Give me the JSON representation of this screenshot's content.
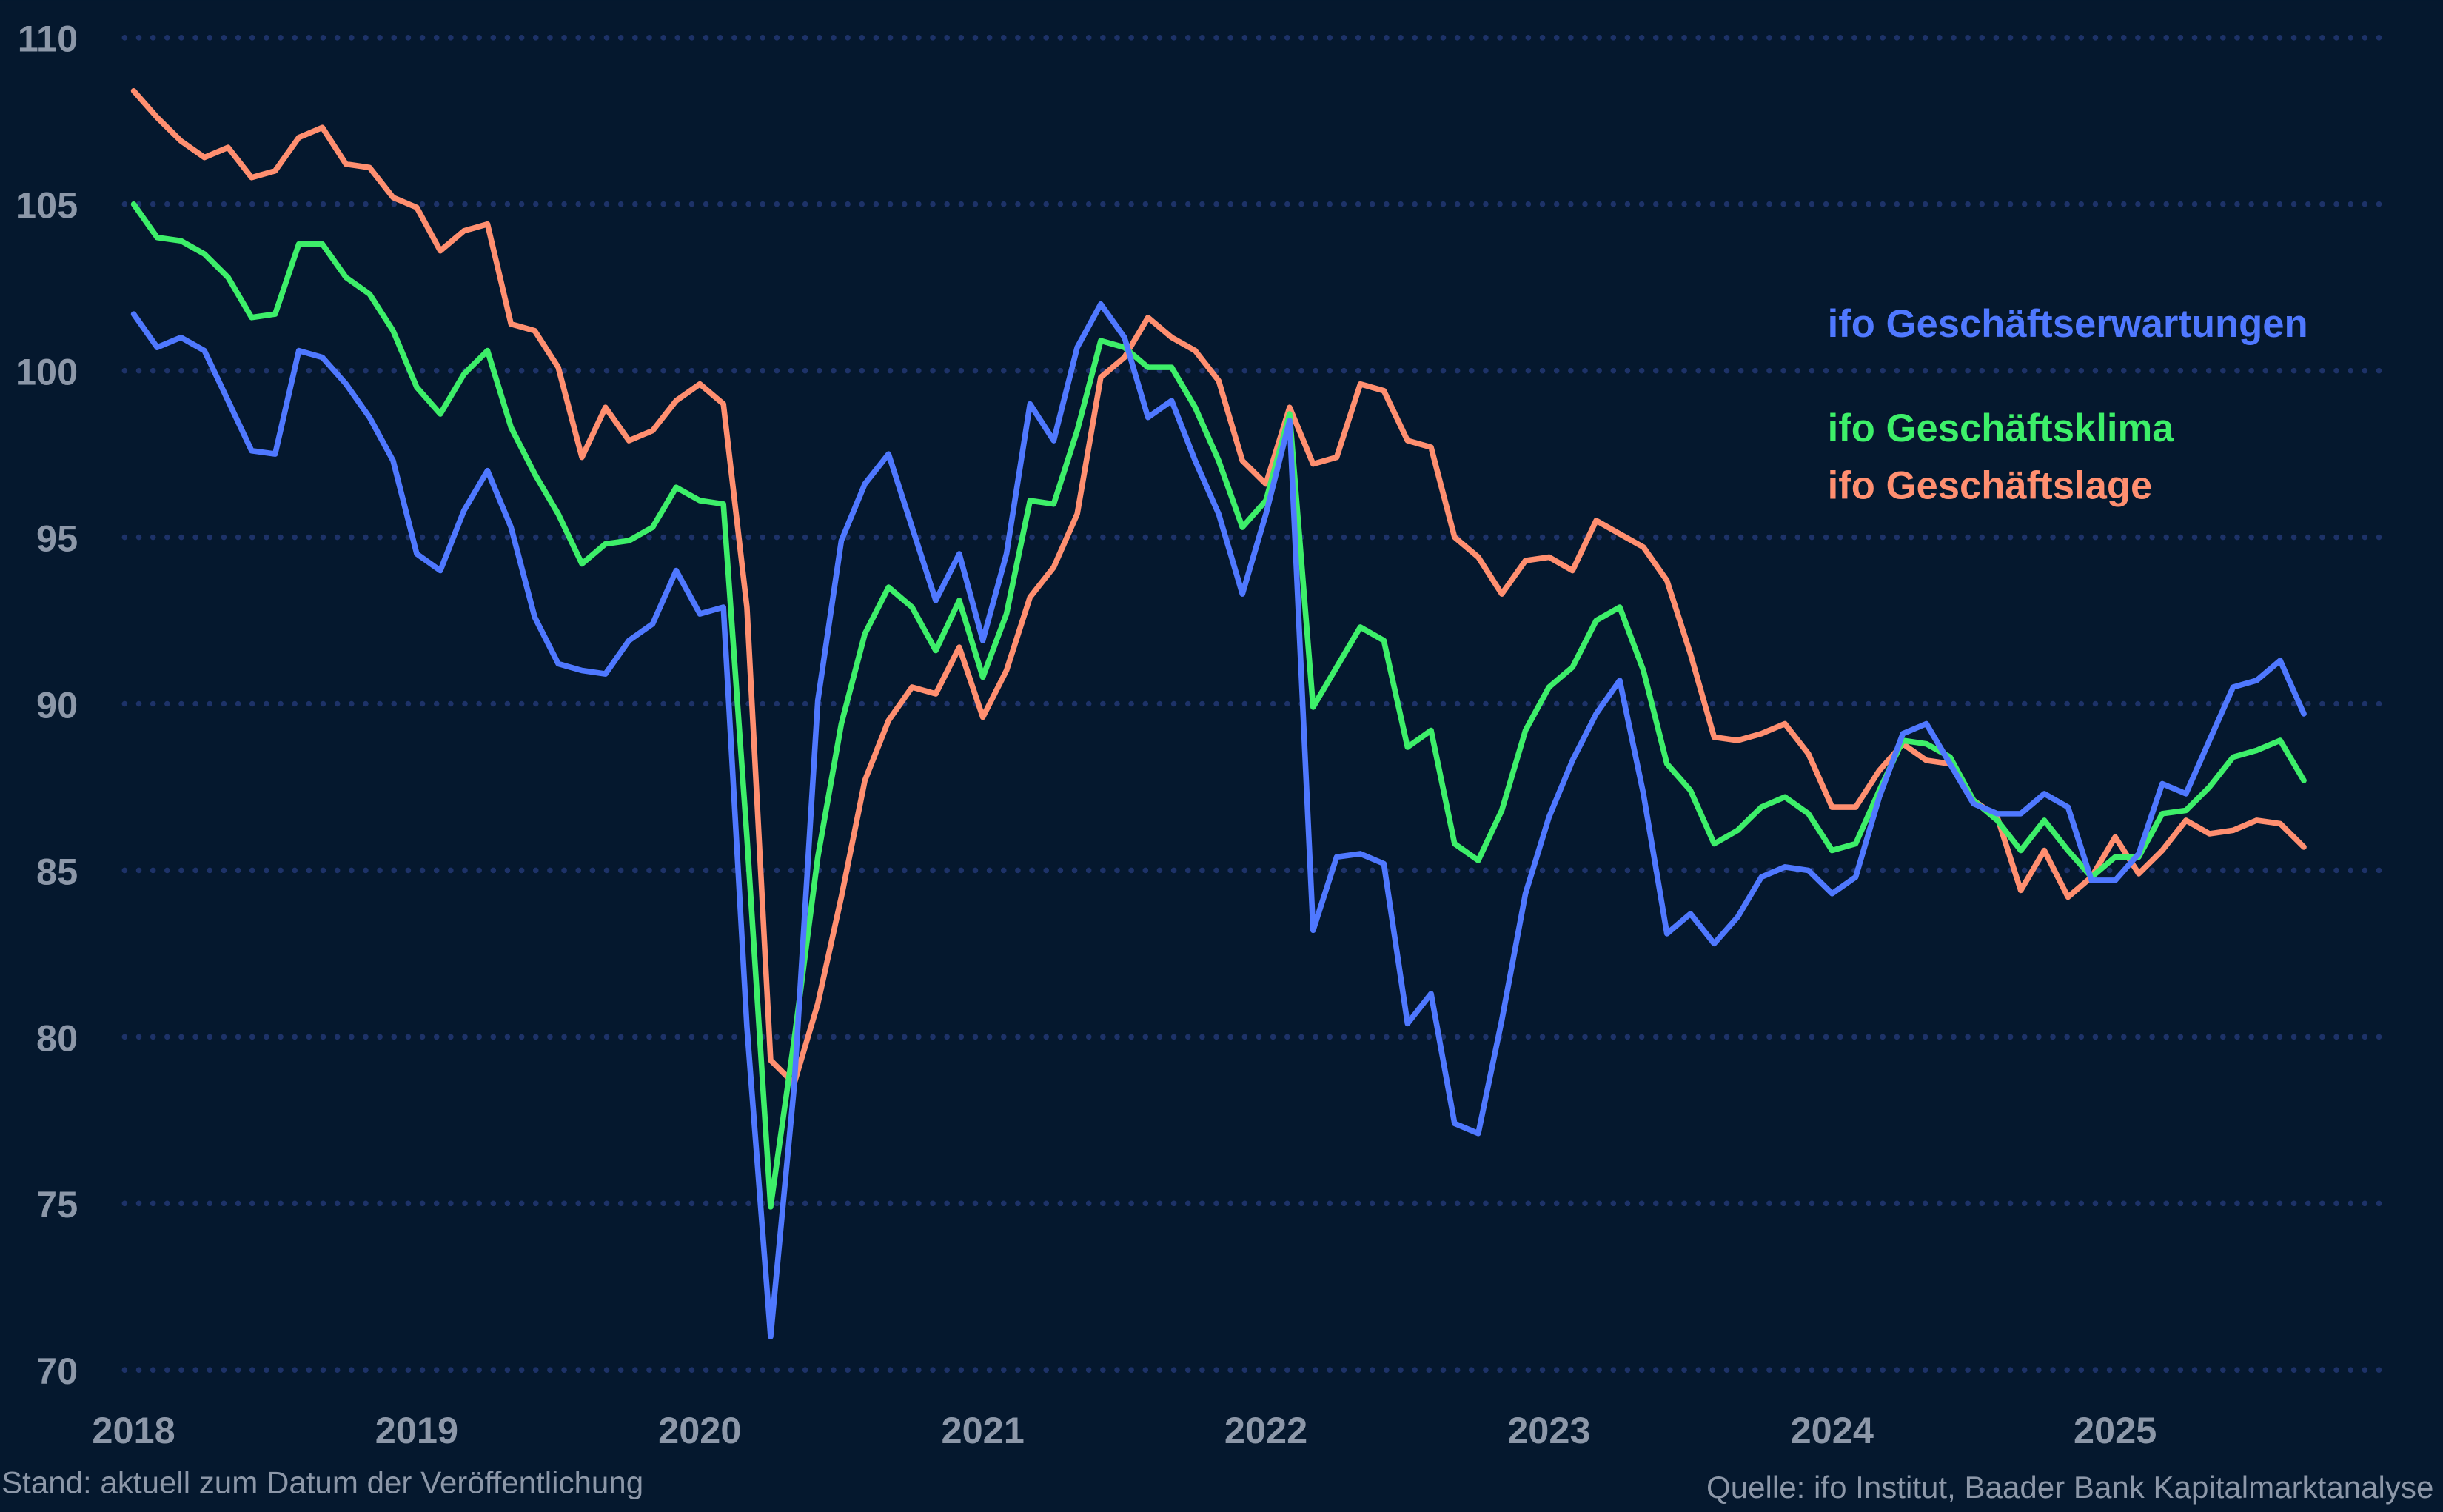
{
  "chart_data": {
    "type": "line",
    "x_start": "2018-01",
    "x_frequency": "monthly",
    "x_tick_labels": [
      "2018",
      "2019",
      "2020",
      "2021",
      "2022",
      "2023",
      "2024",
      "2025"
    ],
    "y_tick_labels": [
      "110",
      "105",
      "100",
      "95",
      "90",
      "85",
      "80",
      "75",
      "70"
    ],
    "ylim": [
      70,
      110
    ],
    "grid": "horizontal dotted",
    "legend_placement": "right",
    "series": [
      {
        "name": "ifo Geschäftserwartungen",
        "color": "#4f78ff",
        "values": [
          101.7,
          100.7,
          101.0,
          100.6,
          99.1,
          97.6,
          97.5,
          100.6,
          100.4,
          99.6,
          98.6,
          97.3,
          94.5,
          94.0,
          95.8,
          97.0,
          95.3,
          92.6,
          91.2,
          91.0,
          90.9,
          91.9,
          92.4,
          94.0,
          92.7,
          92.9,
          80.3,
          71.0,
          78.5,
          90.1,
          94.9,
          96.6,
          97.5,
          95.3,
          93.1,
          94.5,
          91.9,
          94.5,
          99.0,
          97.9,
          100.7,
          102.0,
          101.0,
          98.6,
          99.1,
          97.3,
          95.7,
          93.3,
          95.7,
          98.5,
          83.2,
          85.4,
          85.5,
          85.2,
          80.4,
          81.3,
          77.4,
          77.1,
          80.5,
          84.3,
          86.6,
          88.3,
          89.7,
          90.7,
          87.3,
          83.1,
          83.7,
          82.8,
          83.6,
          84.8,
          85.1,
          85.0,
          84.3,
          84.8,
          87.2,
          89.1,
          89.4,
          88.2,
          87.0,
          86.7,
          86.7,
          87.3,
          86.9,
          84.7,
          84.7,
          85.5,
          87.6,
          87.3,
          88.9,
          90.5,
          90.7,
          91.3,
          89.7
        ]
      },
      {
        "name": "ifo Geschäftsklima",
        "color": "#3def69",
        "values": [
          105.0,
          104.0,
          103.9,
          103.5,
          102.8,
          101.6,
          101.7,
          103.8,
          103.8,
          102.8,
          102.3,
          101.2,
          99.5,
          98.7,
          99.9,
          100.6,
          98.3,
          96.9,
          95.7,
          94.2,
          94.8,
          94.9,
          95.3,
          96.5,
          96.1,
          96.0,
          86.0,
          74.9,
          79.9,
          85.4,
          89.4,
          92.1,
          93.5,
          92.9,
          91.6,
          93.1,
          90.8,
          92.7,
          96.1,
          96.0,
          98.2,
          100.9,
          100.7,
          100.1,
          100.1,
          98.9,
          97.3,
          95.3,
          96.1,
          98.7,
          89.9,
          91.1,
          92.3,
          91.9,
          88.7,
          89.2,
          85.8,
          85.3,
          86.8,
          89.2,
          90.5,
          91.1,
          92.5,
          92.9,
          91.0,
          88.2,
          87.4,
          85.8,
          86.2,
          86.9,
          87.2,
          86.7,
          85.6,
          85.8,
          87.4,
          88.9,
          88.8,
          88.4,
          87.1,
          86.5,
          85.6,
          86.5,
          85.6,
          84.8,
          85.4,
          85.4,
          86.7,
          86.8,
          87.5,
          88.4,
          88.6,
          88.9,
          87.7
        ]
      },
      {
        "name": "ifo Geschäftslage",
        "color": "#ff8f70",
        "values": [
          108.4,
          107.6,
          106.9,
          106.4,
          106.7,
          105.8,
          106.0,
          107.0,
          107.3,
          106.2,
          106.1,
          105.2,
          104.9,
          103.6,
          104.2,
          104.4,
          101.4,
          101.2,
          100.1,
          97.4,
          98.9,
          97.9,
          98.2,
          99.1,
          99.6,
          99.0,
          92.9,
          79.3,
          78.6,
          81.0,
          84.2,
          87.7,
          89.5,
          90.5,
          90.3,
          91.7,
          89.6,
          91.0,
          93.2,
          94.1,
          95.7,
          99.8,
          100.4,
          101.6,
          101.0,
          100.6,
          99.7,
          97.3,
          96.6,
          98.9,
          97.2,
          97.4,
          99.6,
          99.4,
          97.9,
          97.7,
          95.0,
          94.4,
          93.3,
          94.3,
          94.4,
          94.0,
          95.5,
          95.1,
          94.7,
          93.7,
          91.5,
          89.0,
          88.9,
          89.1,
          89.4,
          88.5,
          86.9,
          86.9,
          88.0,
          88.8,
          88.3,
          88.2,
          87.1,
          86.6,
          84.4,
          85.6,
          84.2,
          84.8,
          86.0,
          84.9,
          85.6,
          86.5,
          86.1,
          86.2,
          86.5,
          86.4,
          85.7
        ]
      }
    ]
  },
  "footer": {
    "note": "Stand: aktuell zum Datum der Veröffentlichung",
    "source": "Quelle: ifo Institut, Baader Bank Kapitalmarktanalyse"
  },
  "colors": {
    "background": "#05182e",
    "grid": "#1d3268",
    "tick_text": "#8c97a8"
  }
}
